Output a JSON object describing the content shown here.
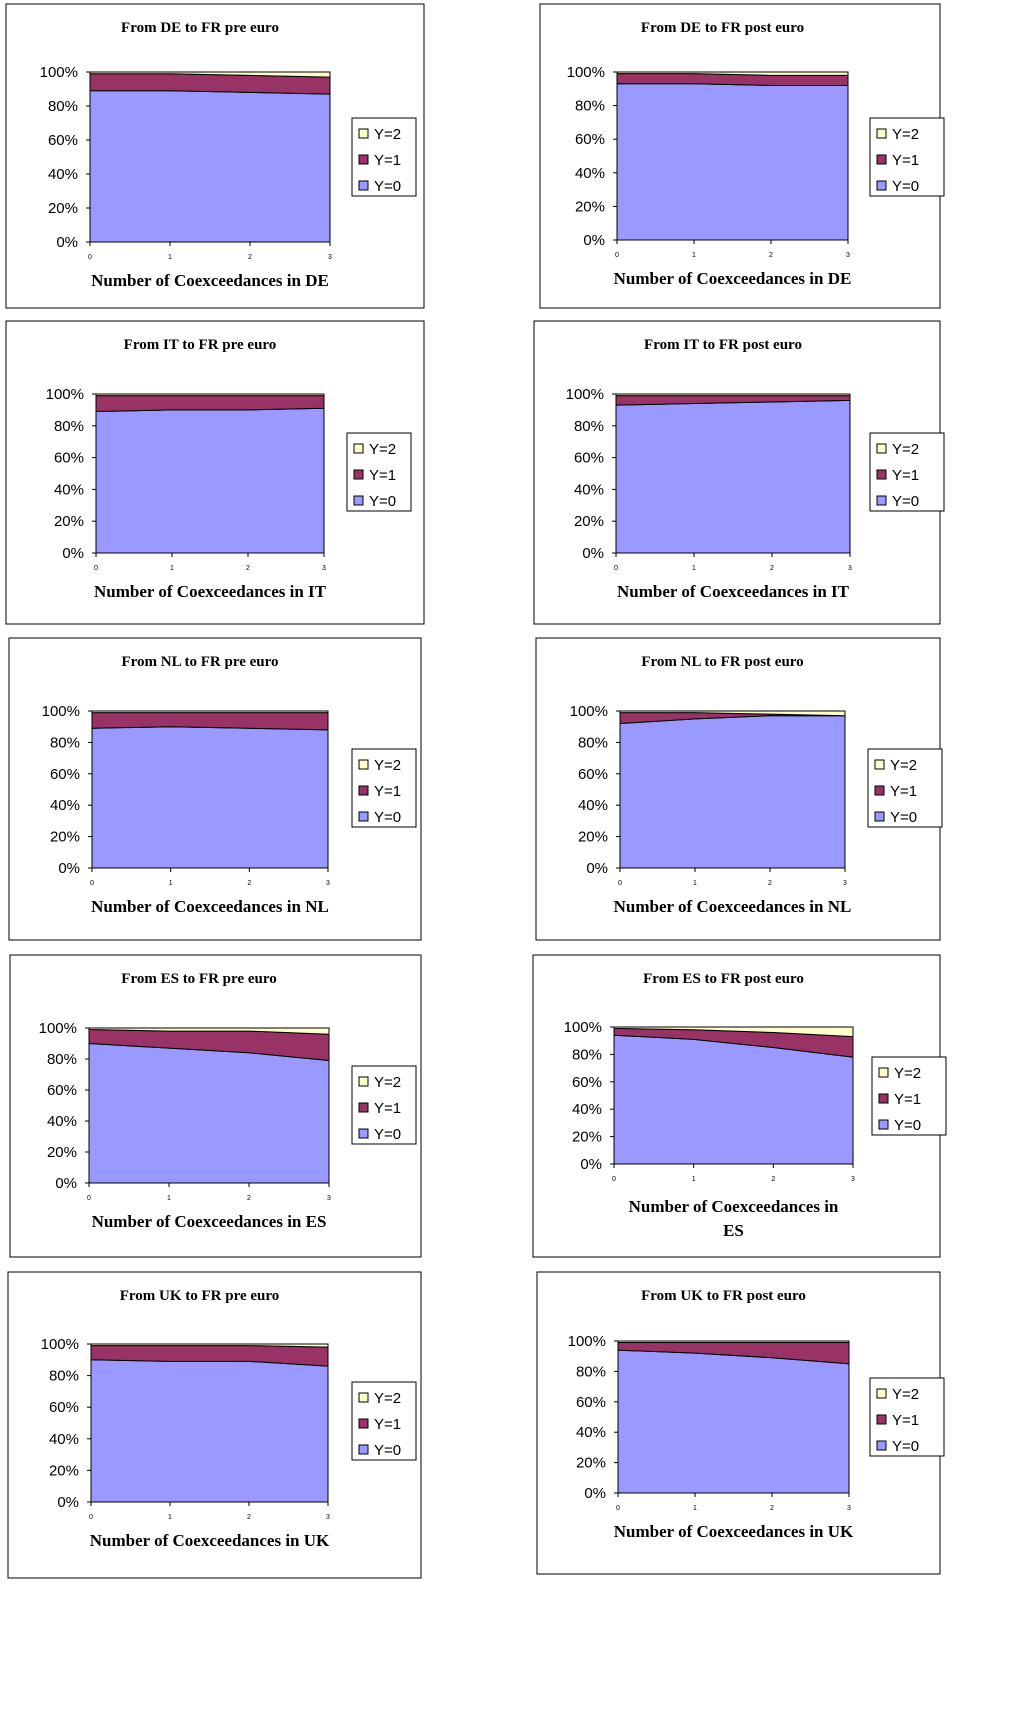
{
  "legend_labels": [
    "Y=2",
    "Y=1",
    "Y=0"
  ],
  "colors": {
    "y0": "#9999ff",
    "y1": "#993366",
    "y2": "#ffffcc"
  },
  "chart_data": [
    {
      "type": "area",
      "title": "From DE to FR pre euro",
      "xlabel": "Number of Coexceedances in DE",
      "x": [
        0,
        1,
        2,
        3
      ],
      "ytick_labels": [
        "0%",
        "20%",
        "40%",
        "60%",
        "80%",
        "100%"
      ],
      "ylim": [
        0,
        100
      ],
      "legend": "right",
      "series": [
        {
          "name": "Y=0",
          "values": [
            89,
            89,
            88,
            87
          ]
        },
        {
          "name": "Y=1",
          "values": [
            10,
            10,
            10,
            10
          ]
        },
        {
          "name": "Y=2",
          "values": [
            1,
            1,
            2,
            3
          ]
        }
      ]
    },
    {
      "type": "area",
      "title": "From DE to FR post euro",
      "xlabel": "Number of Coexceedances in DE",
      "x": [
        0,
        1,
        2,
        3
      ],
      "ytick_labels": [
        "0%",
        "20%",
        "40%",
        "60%",
        "80%",
        "100%"
      ],
      "ylim": [
        0,
        100
      ],
      "legend": "right",
      "series": [
        {
          "name": "Y=0",
          "values": [
            93,
            93,
            92,
            92
          ]
        },
        {
          "name": "Y=1",
          "values": [
            6,
            6,
            6,
            6
          ]
        },
        {
          "name": "Y=2",
          "values": [
            1,
            1,
            2,
            2
          ]
        }
      ]
    },
    {
      "type": "area",
      "title": "From IT to FR pre euro",
      "xlabel": "Number of Coexceedances in IT",
      "x": [
        0,
        1,
        2,
        3
      ],
      "ytick_labels": [
        "0%",
        "20%",
        "40%",
        "60%",
        "80%",
        "100%"
      ],
      "ylim": [
        0,
        100
      ],
      "legend": "right",
      "series": [
        {
          "name": "Y=0",
          "values": [
            89,
            90,
            90,
            91
          ]
        },
        {
          "name": "Y=1",
          "values": [
            10,
            9,
            9,
            8
          ]
        },
        {
          "name": "Y=2",
          "values": [
            1,
            1,
            1,
            1
          ]
        }
      ]
    },
    {
      "type": "area",
      "title": "From IT to FR post euro",
      "xlabel": "Number of Coexceedances in IT",
      "x": [
        0,
        1,
        2,
        3
      ],
      "ytick_labels": [
        "0%",
        "20%",
        "40%",
        "60%",
        "80%",
        "100%"
      ],
      "ylim": [
        0,
        100
      ],
      "legend": "right",
      "series": [
        {
          "name": "Y=0",
          "values": [
            93,
            94,
            95,
            96
          ]
        },
        {
          "name": "Y=1",
          "values": [
            6,
            5,
            4,
            3
          ]
        },
        {
          "name": "Y=2",
          "values": [
            1,
            1,
            1,
            1
          ]
        }
      ]
    },
    {
      "type": "area",
      "title": "From NL to FR pre euro",
      "xlabel": "Number of Coexceedances in NL",
      "x": [
        0,
        1,
        2,
        3
      ],
      "ytick_labels": [
        "0%",
        "20%",
        "40%",
        "60%",
        "80%",
        "100%"
      ],
      "ylim": [
        0,
        100
      ],
      "legend": "right",
      "series": [
        {
          "name": "Y=0",
          "values": [
            89,
            90,
            89,
            88
          ]
        },
        {
          "name": "Y=1",
          "values": [
            10,
            9,
            10,
            11
          ]
        },
        {
          "name": "Y=2",
          "values": [
            1,
            1,
            1,
            1
          ]
        }
      ]
    },
    {
      "type": "area",
      "title": "From NL to FR post euro",
      "xlabel": "Number of Coexceedances in NL",
      "x": [
        0,
        1,
        2,
        3
      ],
      "ytick_labels": [
        "0%",
        "20%",
        "40%",
        "60%",
        "80%",
        "100%"
      ],
      "ylim": [
        0,
        100
      ],
      "legend": "right",
      "series": [
        {
          "name": "Y=0",
          "values": [
            92,
            95,
            97,
            97
          ]
        },
        {
          "name": "Y=1",
          "values": [
            7,
            4,
            1,
            0
          ]
        },
        {
          "name": "Y=2",
          "values": [
            1,
            1,
            2,
            3
          ]
        }
      ]
    },
    {
      "type": "area",
      "title": "From ES to FR pre euro",
      "xlabel": "Number of Coexceedances in ES",
      "x": [
        0,
        1,
        2,
        3
      ],
      "ytick_labels": [
        "0%",
        "20%",
        "40%",
        "60%",
        "80%",
        "100%"
      ],
      "ylim": [
        0,
        100
      ],
      "legend": "right",
      "series": [
        {
          "name": "Y=0",
          "values": [
            90,
            87,
            84,
            79
          ]
        },
        {
          "name": "Y=1",
          "values": [
            9,
            11,
            14,
            17
          ]
        },
        {
          "name": "Y=2",
          "values": [
            1,
            2,
            2,
            4
          ]
        }
      ]
    },
    {
      "type": "area",
      "title": "From ES to FR post euro",
      "xlabel": "Number of Coexceedances in ES",
      "x": [
        0,
        1,
        2,
        3
      ],
      "ytick_labels": [
        "0%",
        "20%",
        "40%",
        "60%",
        "80%",
        "100%"
      ],
      "ylim": [
        0,
        100
      ],
      "legend": "right",
      "series": [
        {
          "name": "Y=0",
          "values": [
            94,
            91,
            85,
            78
          ]
        },
        {
          "name": "Y=1",
          "values": [
            5,
            7,
            11,
            15
          ]
        },
        {
          "name": "Y=2",
          "values": [
            1,
            2,
            4,
            7
          ]
        }
      ]
    },
    {
      "type": "area",
      "title": "From UK to FR pre euro",
      "xlabel": "Number of Coexceedances in UK",
      "x": [
        0,
        1,
        2,
        3
      ],
      "ytick_labels": [
        "0%",
        "20%",
        "40%",
        "60%",
        "80%",
        "100%"
      ],
      "ylim": [
        0,
        100
      ],
      "legend": "right",
      "series": [
        {
          "name": "Y=0",
          "values": [
            90,
            89,
            89,
            86
          ]
        },
        {
          "name": "Y=1",
          "values": [
            9,
            10,
            10,
            12
          ]
        },
        {
          "name": "Y=2",
          "values": [
            1,
            1,
            1,
            2
          ]
        }
      ]
    },
    {
      "type": "area",
      "title": "From UK to FR post euro",
      "xlabel": "Number of Coexceedances in UK",
      "x": [
        0,
        1,
        2,
        3
      ],
      "ytick_labels": [
        "0%",
        "20%",
        "40%",
        "60%",
        "80%",
        "100%"
      ],
      "ylim": [
        0,
        100
      ],
      "legend": "right",
      "series": [
        {
          "name": "Y=0",
          "values": [
            94,
            92,
            89,
            85
          ]
        },
        {
          "name": "Y=1",
          "values": [
            5,
            7,
            10,
            14
          ]
        },
        {
          "name": "Y=2",
          "values": [
            1,
            1,
            1,
            1
          ]
        }
      ]
    }
  ]
}
